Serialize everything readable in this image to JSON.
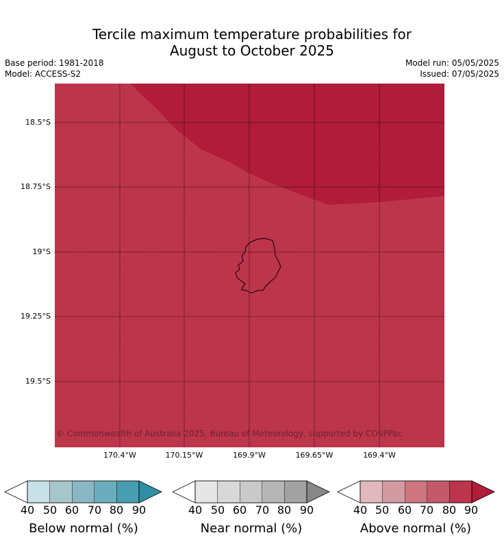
{
  "title_line1": "Tercile maximum temperature probabilities for",
  "title_line2": "August to October 2025",
  "base_period": "Base period: 1981-2018",
  "model": "Model: ACCESS-S2",
  "model_run": "Model run: 05/05/2025",
  "issued": "Issued: 07/05/2025",
  "map": {
    "lat_labels": [
      "18.5°S",
      "18.75°S",
      "19°S",
      "19.25°S",
      "19.5°S"
    ],
    "lon_labels": [
      "170.4°W",
      "170.15°W",
      "169.9°W",
      "169.65°W",
      "169.4°W"
    ],
    "background_color": "#bd354b",
    "high_zone_color": "#b01c3a",
    "copyright": "© Commonwealth of Australia 2025, Bureau of Meteorology, supported by COSPPac"
  },
  "colorbars": [
    {
      "label": "Below normal (%)",
      "ticks": [
        "40",
        "50",
        "60",
        "70",
        "80",
        "90"
      ],
      "colors": [
        "#c8e0e7",
        "#a7c6cb",
        "#8ab7c3",
        "#6cadbd",
        "#4a9db0",
        "#2e8ea4"
      ]
    },
    {
      "label": "Near normal (%)",
      "ticks": [
        "40",
        "50",
        "60",
        "70",
        "80",
        "90"
      ],
      "colors": [
        "#e6e6e6",
        "#d8d8d8",
        "#c9c9c9",
        "#b6b6b6",
        "#a2a2a2",
        "#888888"
      ]
    },
    {
      "label": "Above normal (%)",
      "ticks": [
        "40",
        "50",
        "60",
        "70",
        "80",
        "90"
      ],
      "colors": [
        "#e0b8bd",
        "#d49aa1",
        "#ce7680",
        "#c45a69",
        "#bd354b",
        "#b01c3a"
      ]
    }
  ]
}
